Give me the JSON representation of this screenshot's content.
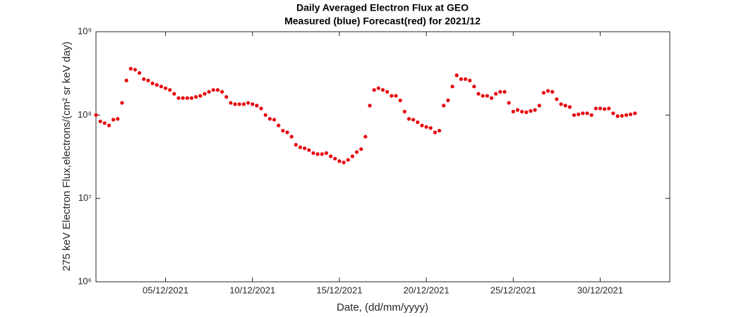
{
  "chart_data": {
    "type": "scatter",
    "title": "Daily Averaged Electron Flux at GEO",
    "subtitle": "Measured (blue) Forecast(red) for 2021/12",
    "xlabel": "Date, (dd/mm/yyyy)",
    "ylabel": "275 keV Electron Flux,electrons/(cm² sr keV day)",
    "log_y": true,
    "grid": false,
    "xlim": [
      "2021-12-01",
      "2022-01-03"
    ],
    "xticks": [
      {
        "value": "2021-12-05",
        "label": "05/12/2021"
      },
      {
        "value": "2021-12-10",
        "label": "10/12/2021"
      },
      {
        "value": "2021-12-15",
        "label": "15/12/2021"
      },
      {
        "value": "2021-12-20",
        "label": "20/12/2021"
      },
      {
        "value": "2021-12-25",
        "label": "25/12/2021"
      },
      {
        "value": "2021-12-30",
        "label": "30/12/2021"
      }
    ],
    "ylim": [
      1000000,
      1000000000
    ],
    "yticks": [
      {
        "value": 1000000,
        "label": "10⁶"
      },
      {
        "value": 10000000,
        "label": "10⁷"
      },
      {
        "value": 100000000,
        "label": "10⁸"
      },
      {
        "value": 1000000000,
        "label": "10⁹"
      }
    ],
    "x": [
      "2021-12-01T00:00",
      "2021-12-01T06:00",
      "2021-12-01T12:00",
      "2021-12-01T18:00",
      "2021-12-02T00:00",
      "2021-12-02T06:00",
      "2021-12-02T12:00",
      "2021-12-02T18:00",
      "2021-12-03T00:00",
      "2021-12-03T06:00",
      "2021-12-03T12:00",
      "2021-12-03T18:00",
      "2021-12-04T00:00",
      "2021-12-04T06:00",
      "2021-12-04T12:00",
      "2021-12-04T18:00",
      "2021-12-05T00:00",
      "2021-12-05T06:00",
      "2021-12-05T12:00",
      "2021-12-05T18:00",
      "2021-12-06T00:00",
      "2021-12-06T06:00",
      "2021-12-06T12:00",
      "2021-12-06T18:00",
      "2021-12-07T00:00",
      "2021-12-07T06:00",
      "2021-12-07T12:00",
      "2021-12-07T18:00",
      "2021-12-08T00:00",
      "2021-12-08T06:00",
      "2021-12-08T12:00",
      "2021-12-08T18:00",
      "2021-12-09T00:00",
      "2021-12-09T06:00",
      "2021-12-09T12:00",
      "2021-12-09T18:00",
      "2021-12-10T00:00",
      "2021-12-10T06:00",
      "2021-12-10T12:00",
      "2021-12-10T18:00",
      "2021-12-11T00:00",
      "2021-12-11T06:00",
      "2021-12-11T12:00",
      "2021-12-11T18:00",
      "2021-12-12T00:00",
      "2021-12-12T06:00",
      "2021-12-12T12:00",
      "2021-12-12T18:00",
      "2021-12-13T00:00",
      "2021-12-13T06:00",
      "2021-12-13T12:00",
      "2021-12-13T18:00",
      "2021-12-14T00:00",
      "2021-12-14T06:00",
      "2021-12-14T12:00",
      "2021-12-14T18:00",
      "2021-12-15T00:00",
      "2021-12-15T06:00",
      "2021-12-15T12:00",
      "2021-12-15T18:00",
      "2021-12-16T00:00",
      "2021-12-16T06:00",
      "2021-12-16T12:00",
      "2021-12-16T18:00",
      "2021-12-17T00:00",
      "2021-12-17T06:00",
      "2021-12-17T12:00",
      "2021-12-17T18:00",
      "2021-12-18T00:00",
      "2021-12-18T06:00",
      "2021-12-18T12:00",
      "2021-12-18T18:00",
      "2021-12-19T00:00",
      "2021-12-19T06:00",
      "2021-12-19T12:00",
      "2021-12-19T18:00",
      "2021-12-20T00:00",
      "2021-12-20T06:00",
      "2021-12-20T12:00",
      "2021-12-20T18:00",
      "2021-12-21T00:00",
      "2021-12-21T06:00",
      "2021-12-21T12:00",
      "2021-12-21T18:00",
      "2021-12-22T00:00",
      "2021-12-22T06:00",
      "2021-12-22T12:00",
      "2021-12-22T18:00",
      "2021-12-23T00:00",
      "2021-12-23T06:00",
      "2021-12-23T12:00",
      "2021-12-23T18:00",
      "2021-12-24T00:00",
      "2021-12-24T06:00",
      "2021-12-24T12:00",
      "2021-12-24T18:00",
      "2021-12-25T00:00",
      "2021-12-25T06:00",
      "2021-12-25T12:00",
      "2021-12-25T18:00",
      "2021-12-26T00:00",
      "2021-12-26T06:00",
      "2021-12-26T12:00",
      "2021-12-26T18:00",
      "2021-12-27T00:00",
      "2021-12-27T06:00",
      "2021-12-27T12:00",
      "2021-12-27T18:00",
      "2021-12-28T00:00",
      "2021-12-28T06:00",
      "2021-12-28T12:00",
      "2021-12-28T18:00",
      "2021-12-29T00:00",
      "2021-12-29T06:00",
      "2021-12-29T12:00",
      "2021-12-29T18:00",
      "2021-12-30T00:00",
      "2021-12-30T06:00",
      "2021-12-30T12:00",
      "2021-12-30T18:00",
      "2021-12-31T00:00",
      "2021-12-31T06:00",
      "2021-12-31T12:00",
      "2021-12-31T18:00",
      "2022-01-01T00:00"
    ],
    "color": "#e8000b",
    "values": [
      100000000.0,
      84000000.0,
      80000000.0,
      75000000.0,
      88000000.0,
      90000000.0,
      140000000.0,
      260000000.0,
      360000000.0,
      350000000.0,
      320000000.0,
      270000000.0,
      260000000.0,
      240000000.0,
      230000000.0,
      220000000.0,
      210000000.0,
      200000000.0,
      180000000.0,
      160000000.0,
      160000000.0,
      160000000.0,
      160000000.0,
      165000000.0,
      170000000.0,
      180000000.0,
      190000000.0,
      200000000.0,
      200000000.0,
      190000000.0,
      165000000.0,
      140000000.0,
      135000000.0,
      135000000.0,
      135000000.0,
      140000000.0,
      135000000.0,
      130000000.0,
      120000000.0,
      100000000.0,
      90000000.0,
      88000000.0,
      75000000.0,
      65000000.0,
      62000000.0,
      55000000.0,
      44000000.0,
      41000000.0,
      40000000.0,
      38000000.0,
      35000000.0,
      34000000.0,
      34000000.0,
      35000000.0,
      32000000.0,
      30000000.0,
      28000000.0,
      27000000.0,
      29000000.0,
      32000000.0,
      36000000.0,
      39000000.0,
      55000000.0,
      130000000.0,
      200000000.0,
      210000000.0,
      200000000.0,
      190000000.0,
      170000000.0,
      170000000.0,
      150000000.0,
      110000000.0,
      90000000.0,
      88000000.0,
      82000000.0,
      75000000.0,
      72000000.0,
      70000000.0,
      62000000.0,
      65000000.0,
      130000000.0,
      150000000.0,
      220000000.0,
      300000000.0,
      270000000.0,
      270000000.0,
      260000000.0,
      220000000.0,
      180000000.0,
      170000000.0,
      170000000.0,
      160000000.0,
      180000000.0,
      190000000.0,
      190000000.0,
      140000000.0,
      110000000.0,
      115000000.0,
      110000000.0,
      108000000.0,
      112000000.0,
      115000000.0,
      130000000.0,
      185000000.0,
      195000000.0,
      190000000.0,
      155000000.0,
      135000000.0,
      130000000.0,
      125000000.0,
      100000000.0,
      102000000.0,
      105000000.0,
      105000000.0,
      100000000.0,
      120000000.0,
      120000000.0,
      118000000.0,
      120000000.0,
      105000000.0,
      97000000.0,
      98000000.0,
      100000000.0,
      102000000.0,
      105000000.0
    ]
  }
}
